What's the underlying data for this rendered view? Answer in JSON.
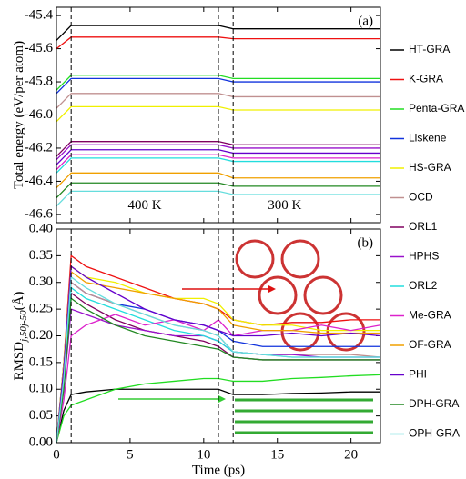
{
  "chart_data": [
    {
      "type": "line",
      "ylabel": "Total energy (eV/per atom)",
      "panel_label": "(a)",
      "annotations": [
        {
          "text": "400 K",
          "x": 6,
          "y": -46.55
        },
        {
          "text": "300 K",
          "x": 15.5,
          "y": -46.55
        }
      ],
      "vlines": [
        1,
        11,
        12
      ],
      "xlim": [
        0,
        22
      ],
      "xticks": [
        0,
        5,
        10,
        15,
        20
      ],
      "ylim": [
        -46.65,
        -45.35
      ],
      "yticks": [
        -45.4,
        -45.6,
        -45.8,
        {
          "value": -46,
          "label": "-46.0"
        },
        -46.2,
        -46.4,
        -46.6
      ],
      "x": [
        0,
        1,
        6,
        11,
        12,
        17,
        22
      ],
      "series": [
        {
          "name": "HT-GRA",
          "color": "#000000",
          "values": [
            -45.55,
            -45.46,
            -45.46,
            -45.46,
            -45.48,
            -45.48,
            -45.48
          ]
        },
        {
          "name": "K-GRA",
          "color": "#ee1111",
          "values": [
            -45.6,
            -45.53,
            -45.53,
            -45.53,
            -45.54,
            -45.54,
            -45.54
          ]
        },
        {
          "name": "Penta-GRA",
          "color": "#22dd22",
          "values": [
            -45.85,
            -45.76,
            -45.76,
            -45.76,
            -45.78,
            -45.78,
            -45.78
          ]
        },
        {
          "name": "Liskene",
          "color": "#1133dd",
          "values": [
            -45.87,
            -45.78,
            -45.78,
            -45.78,
            -45.8,
            -45.8,
            -45.8
          ]
        },
        {
          "name": "HS-GRA",
          "color": "#f0f000",
          "values": [
            -46.04,
            -45.95,
            -45.95,
            -45.95,
            -45.97,
            -45.97,
            -45.97
          ]
        },
        {
          "name": "OCD",
          "color": "#c09090",
          "values": [
            -45.96,
            -45.87,
            -45.87,
            -45.87,
            -45.89,
            -45.89,
            -45.89
          ]
        },
        {
          "name": "ORL1",
          "color": "#800060",
          "values": [
            -46.25,
            -46.16,
            -46.16,
            -46.16,
            -46.18,
            -46.18,
            -46.18
          ]
        },
        {
          "name": "HPHS",
          "color": "#9911cc",
          "values": [
            -46.27,
            -46.18,
            -46.18,
            -46.18,
            -46.2,
            -46.2,
            -46.2
          ]
        },
        {
          "name": "ORL2",
          "color": "#22dddd",
          "values": [
            -46.35,
            -46.26,
            -46.26,
            -46.26,
            -46.28,
            -46.28,
            -46.28
          ]
        },
        {
          "name": "Me-GRA",
          "color": "#dd22cc",
          "values": [
            -46.33,
            -46.24,
            -46.24,
            -46.24,
            -46.26,
            -46.26,
            -46.26
          ]
        },
        {
          "name": "OF-GRA",
          "color": "#f0a000",
          "values": [
            -46.44,
            -46.35,
            -46.35,
            -46.35,
            -46.38,
            -46.38,
            -46.38
          ]
        },
        {
          "name": "PHI",
          "color": "#6600cc",
          "values": [
            -46.3,
            -46.21,
            -46.21,
            -46.21,
            -46.23,
            -46.23,
            -46.23
          ]
        },
        {
          "name": "DPH-GRA",
          "color": "#228822",
          "values": [
            -46.5,
            -46.41,
            -46.41,
            -46.41,
            -46.43,
            -46.43,
            -46.43
          ]
        },
        {
          "name": "OPH-GRA",
          "color": "#66dddd",
          "values": [
            -46.55,
            -46.46,
            -46.46,
            -46.46,
            -46.48,
            -46.48,
            -46.48
          ]
        }
      ]
    },
    {
      "type": "line",
      "ylabel": "RMSD",
      "ylabel_sub": "j,50j-50",
      "ylabel_unit": "(Å)",
      "panel_label": "(b)",
      "xlabel": "Time (ps)",
      "vlines": [
        1,
        11,
        12
      ],
      "xlim": [
        0,
        22
      ],
      "xticks": [
        0,
        5,
        10,
        15,
        20
      ],
      "ylim": [
        0,
        0.4
      ],
      "yticks": [
        {
          "value": 0,
          "label": "0.00"
        },
        0.05,
        {
          "value": 0.1,
          "label": "0.10"
        },
        0.15,
        {
          "value": 0.2,
          "label": "0.20"
        },
        0.25,
        {
          "value": 0.3,
          "label": "0.30"
        },
        0.35,
        {
          "value": 0.4,
          "label": "0.40"
        }
      ],
      "x": [
        0,
        0.5,
        1,
        2,
        4,
        6,
        8,
        10,
        11,
        12,
        14,
        16,
        18,
        20,
        22
      ],
      "series": [
        {
          "color": "#000000",
          "values": [
            0,
            0.06,
            0.09,
            0.095,
            0.1,
            0.1,
            0.1,
            0.1,
            0.1,
            0.09,
            0.09,
            0.092,
            0.093,
            0.095,
            0.095
          ]
        },
        {
          "color": "#ee1111",
          "values": [
            0,
            0.15,
            0.35,
            0.33,
            0.31,
            0.29,
            0.27,
            0.26,
            0.25,
            0.23,
            0.22,
            0.225,
            0.225,
            0.23,
            0.23
          ]
        },
        {
          "color": "#22dd22",
          "values": [
            0,
            0.05,
            0.07,
            0.08,
            0.1,
            0.11,
            0.115,
            0.12,
            0.12,
            0.115,
            0.115,
            0.12,
            0.122,
            0.125,
            0.127
          ]
        },
        {
          "color": "#1133dd",
          "values": [
            0,
            0.15,
            0.3,
            0.28,
            0.26,
            0.25,
            0.23,
            0.22,
            0.21,
            0.19,
            0.18,
            0.18,
            0.18,
            0.18,
            0.18
          ]
        },
        {
          "color": "#f0f000",
          "values": [
            0,
            0.15,
            0.33,
            0.31,
            0.3,
            0.28,
            0.27,
            0.27,
            0.26,
            0.23,
            0.22,
            0.22,
            0.21,
            0.21,
            0.21
          ]
        },
        {
          "color": "#c09090",
          "values": [
            0,
            0.12,
            0.3,
            0.28,
            0.26,
            0.24,
            0.22,
            0.21,
            0.2,
            0.17,
            0.165,
            0.165,
            0.165,
            0.165,
            0.16
          ]
        },
        {
          "color": "#800060",
          "values": [
            0,
            0.12,
            0.28,
            0.26,
            0.23,
            0.21,
            0.2,
            0.19,
            0.18,
            0.16,
            0.155,
            0.155,
            0.155,
            0.155,
            0.155
          ]
        },
        {
          "color": "#9911cc",
          "values": [
            0,
            0.1,
            0.25,
            0.24,
            0.22,
            0.21,
            0.2,
            0.2,
            0.19,
            0.17,
            0.165,
            0.165,
            0.16,
            0.16,
            0.16
          ]
        },
        {
          "color": "#22dddd",
          "values": [
            0,
            0.12,
            0.29,
            0.27,
            0.25,
            0.23,
            0.21,
            0.2,
            0.19,
            0.17,
            0.165,
            0.16,
            0.16,
            0.16,
            0.16
          ]
        },
        {
          "color": "#dd22cc",
          "values": [
            0,
            0.08,
            0.2,
            0.22,
            0.24,
            0.22,
            0.23,
            0.21,
            0.23,
            0.2,
            0.21,
            0.21,
            0.22,
            0.21,
            0.22
          ]
        },
        {
          "color": "#f0a000",
          "values": [
            0,
            0.14,
            0.32,
            0.3,
            0.29,
            0.28,
            0.27,
            0.26,
            0.25,
            0.22,
            0.21,
            0.21,
            0.205,
            0.205,
            0.205
          ]
        },
        {
          "color": "#6600cc",
          "values": [
            0,
            0.14,
            0.33,
            0.31,
            0.28,
            0.25,
            0.23,
            0.22,
            0.21,
            0.2,
            0.2,
            0.205,
            0.2,
            0.205,
            0.2
          ]
        },
        {
          "color": "#228822",
          "values": [
            0,
            0.1,
            0.27,
            0.25,
            0.22,
            0.2,
            0.19,
            0.18,
            0.175,
            0.16,
            0.155,
            0.155,
            0.155,
            0.155,
            0.155
          ]
        },
        {
          "color": "#66dddd",
          "values": [
            0,
            0.12,
            0.31,
            0.29,
            0.26,
            0.24,
            0.22,
            0.21,
            0.2,
            0.17,
            0.165,
            0.16,
            0.16,
            0.16,
            0.16
          ]
        }
      ]
    }
  ]
}
